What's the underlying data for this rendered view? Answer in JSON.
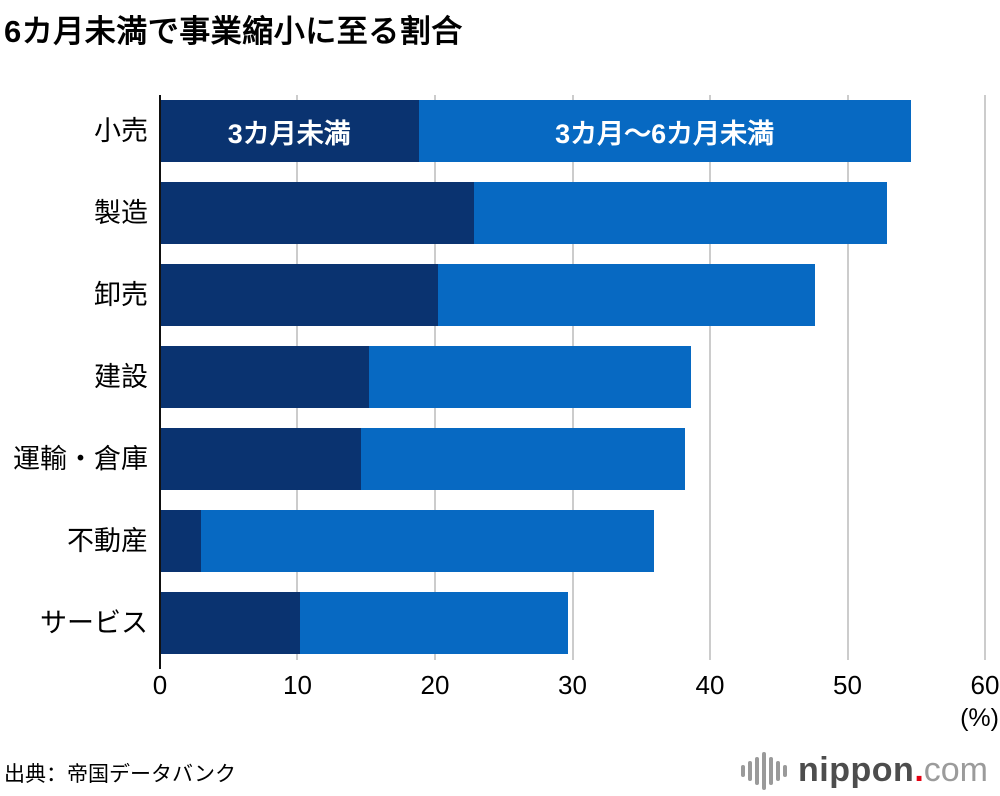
{
  "title": "6カ月未満で事業縮小に至る割合",
  "source": "出典：帝国データバンク",
  "logo": {
    "name": "nippon",
    "dot": ".",
    "suffix": "com"
  },
  "chart_data": {
    "type": "bar",
    "orientation": "horizontal",
    "stacked": true,
    "title": "6カ月未満で事業縮小に至る割合",
    "categories": [
      "小売",
      "製造",
      "卸売",
      "建設",
      "運輸・倉庫",
      "不動産",
      "サービス"
    ],
    "series": [
      {
        "name": "3カ月未満",
        "color": "#0a3370",
        "values": [
          18.8,
          22.8,
          20.2,
          15.2,
          14.6,
          3.0,
          10.2
        ]
      },
      {
        "name": "3カ月〜6カ月未満",
        "color": "#0769c2",
        "values": [
          35.8,
          30.1,
          27.4,
          23.4,
          23.6,
          32.9,
          19.5
        ]
      }
    ],
    "totals": [
      54.6,
      52.9,
      47.6,
      38.6,
      38.2,
      35.9,
      29.7
    ],
    "xlim": [
      0,
      60
    ],
    "xticks": [
      0,
      10,
      20,
      30,
      40,
      50,
      60
    ],
    "x_unit": "(%)",
    "grid": true,
    "gridline_color": "#cccccc",
    "legend_position": "inside-first-bar"
  }
}
